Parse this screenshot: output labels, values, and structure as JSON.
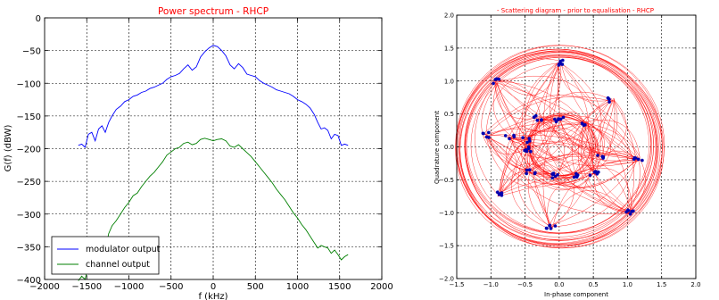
{
  "chart_data": [
    {
      "type": "line",
      "title": "Power spectrum -  RHCP",
      "xlabel": "f (kHz)",
      "ylabel": "G(f) (dBW)",
      "xlim": [
        -2000,
        2000
      ],
      "ylim": [
        -400,
        0
      ],
      "xticks": [
        -2000,
        -1500,
        -1000,
        -500,
        0,
        500,
        1000,
        1500,
        2000
      ],
      "yticks": [
        0,
        -50,
        -100,
        -150,
        -200,
        -250,
        -300,
        -350,
        -400
      ],
      "xtick_labels": [
        "−2000",
        "−1500",
        "−1000",
        "−500",
        "0",
        "500",
        "1000",
        "1500",
        "2000"
      ],
      "ytick_labels": [
        "0",
        "−50",
        "−100",
        "−150",
        "−200",
        "−250",
        "−300",
        "−350",
        "−400"
      ],
      "grid": true,
      "legend": "lower-left",
      "colors": {
        "title": "#ff0000",
        "modulator": "#0000ff",
        "channel": "#007f00"
      },
      "series": [
        {
          "name": "modulator output",
          "color": "#0000ff",
          "x": [
            -1600,
            -1560,
            -1520,
            -1480,
            -1440,
            -1400,
            -1360,
            -1320,
            -1280,
            -1240,
            -1200,
            -1150,
            -1100,
            -1050,
            -1000,
            -950,
            -900,
            -850,
            -800,
            -750,
            -700,
            -650,
            -600,
            -550,
            -500,
            -450,
            -400,
            -350,
            -300,
            -250,
            -200,
            -150,
            -100,
            -50,
            0,
            50,
            100,
            150,
            200,
            250,
            300,
            350,
            400,
            450,
            500,
            550,
            600,
            650,
            700,
            750,
            800,
            850,
            900,
            950,
            1000,
            1050,
            1100,
            1150,
            1200,
            1240,
            1280,
            1320,
            1360,
            1400,
            1440,
            1480,
            1520,
            1560,
            1600
          ],
          "y": [
            -195,
            -193,
            -198,
            -178,
            -175,
            -188,
            -170,
            -165,
            -175,
            -160,
            -150,
            -140,
            -135,
            -128,
            -125,
            -120,
            -118,
            -114,
            -112,
            -108,
            -106,
            -103,
            -100,
            -94,
            -90,
            -88,
            -85,
            -78,
            -72,
            -80,
            -75,
            -60,
            -52,
            -46,
            -42,
            -44,
            -50,
            -58,
            -72,
            -78,
            -70,
            -76,
            -86,
            -88,
            -90,
            -96,
            -100,
            -103,
            -106,
            -110,
            -112,
            -114,
            -116,
            -120,
            -125,
            -128,
            -132,
            -138,
            -148,
            -160,
            -170,
            -168,
            -172,
            -185,
            -178,
            -180,
            -195,
            -193,
            -195
          ]
        },
        {
          "name": "channel output",
          "color": "#007f00",
          "x": [
            -1600,
            -1560,
            -1520,
            -1480,
            -1440,
            -1400,
            -1360,
            -1320,
            -1280,
            -1240,
            -1200,
            -1150,
            -1100,
            -1050,
            -1000,
            -950,
            -900,
            -850,
            -800,
            -750,
            -700,
            -650,
            -600,
            -550,
            -500,
            -450,
            -400,
            -350,
            -300,
            -250,
            -200,
            -150,
            -100,
            -50,
            0,
            50,
            100,
            150,
            200,
            250,
            300,
            350,
            400,
            450,
            500,
            550,
            600,
            650,
            700,
            750,
            800,
            850,
            900,
            950,
            1000,
            1050,
            1100,
            1150,
            1200,
            1240,
            1280,
            1320,
            1360,
            1400,
            1440,
            1480,
            1520,
            1560,
            1600
          ],
          "y": [
            -402,
            -395,
            -400,
            -378,
            -375,
            -385,
            -360,
            -340,
            -356,
            -330,
            -318,
            -310,
            -300,
            -290,
            -282,
            -272,
            -268,
            -258,
            -250,
            -242,
            -236,
            -228,
            -220,
            -210,
            -205,
            -200,
            -198,
            -192,
            -190,
            -194,
            -192,
            -186,
            -184,
            -186,
            -188,
            -186,
            -185,
            -188,
            -196,
            -198,
            -194,
            -200,
            -206,
            -212,
            -220,
            -228,
            -236,
            -244,
            -252,
            -262,
            -270,
            -278,
            -288,
            -298,
            -306,
            -316,
            -324,
            -334,
            -344,
            -352,
            -348,
            -350,
            -352,
            -360,
            -355,
            -362,
            -370,
            -365,
            -362
          ]
        }
      ]
    },
    {
      "type": "scatter",
      "title": "- Scattering diagram -  prior to equalisation -  RHCP",
      "xlabel": "In-phase component",
      "ylabel": "Quadrature component",
      "xlim": [
        -1.5,
        2.0
      ],
      "ylim": [
        -2.0,
        2.0
      ],
      "xticks": [
        -1.5,
        -1.0,
        -0.5,
        0.0,
        0.5,
        1.0,
        1.5,
        2.0
      ],
      "yticks": [
        -2.0,
        -1.5,
        -1.0,
        -0.5,
        0.0,
        0.5,
        1.0,
        1.5,
        2.0
      ],
      "xtick_labels": [
        "−1.5",
        "−1.0",
        "−0.5",
        "0.0",
        "0.5",
        "1.0",
        "1.5",
        "2.0"
      ],
      "ytick_labels": [
        "−2.0",
        "−1.5",
        "−1.0",
        "−0.5",
        "0.0",
        "0.5",
        "1.0",
        "1.5",
        "2.0"
      ],
      "grid": true,
      "colors": {
        "title": "#ff0000",
        "trajectory": "#ff0000",
        "points": "#0000b0"
      },
      "clusters": [
        {
          "x": 0.0,
          "y": 1.28
        },
        {
          "x": -0.92,
          "y": 1.0
        },
        {
          "x": 0.78,
          "y": 0.72
        },
        {
          "x": -0.3,
          "y": 0.44
        },
        {
          "x": 0.0,
          "y": 0.42
        },
        {
          "x": 0.38,
          "y": 0.36
        },
        {
          "x": -1.08,
          "y": 0.18
        },
        {
          "x": -0.72,
          "y": 0.15
        },
        {
          "x": -0.5,
          "y": 0.1
        },
        {
          "x": -0.48,
          "y": -0.04
        },
        {
          "x": 0.62,
          "y": -0.14
        },
        {
          "x": 1.15,
          "y": -0.18
        },
        {
          "x": -0.42,
          "y": -0.38
        },
        {
          "x": -0.04,
          "y": -0.44
        },
        {
          "x": 0.22,
          "y": -0.42
        },
        {
          "x": 0.52,
          "y": -0.4
        },
        {
          "x": -0.88,
          "y": -0.72
        },
        {
          "x": 1.05,
          "y": -1.0
        },
        {
          "x": -0.12,
          "y": -1.22
        }
      ]
    }
  ],
  "legend": {
    "modulator_label": "modulator output",
    "channel_label": "channel output"
  }
}
